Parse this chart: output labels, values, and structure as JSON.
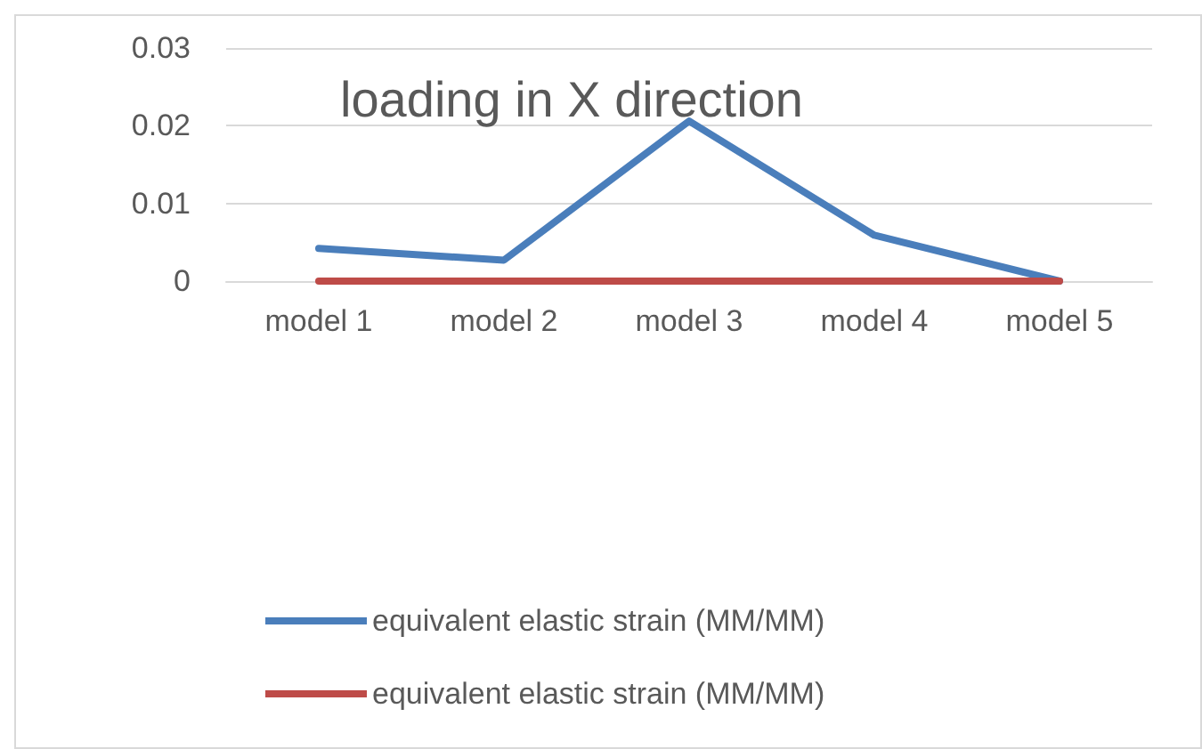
{
  "chart_data": {
    "type": "line",
    "title": "loading in X direction",
    "categories": [
      "model 1",
      "model 2",
      "model 3",
      "model 4",
      "model 5"
    ],
    "series": [
      {
        "name": "equivalent elastic strain (MM/MM)",
        "color": "#4a7ebb",
        "values": [
          0.0042,
          0.0027,
          0.0206,
          0.0059,
          0
        ]
      },
      {
        "name": "equivalent elastic strain (MM/MM)",
        "color": "#be4b48",
        "values": [
          0,
          0,
          0,
          0,
          0
        ]
      }
    ],
    "ylim": [
      0,
      0.03
    ],
    "yticks": [
      0,
      0.01,
      0.02,
      0.03
    ],
    "grid": "y",
    "legend": "bottom",
    "marker": "none",
    "line_style": "solid"
  }
}
